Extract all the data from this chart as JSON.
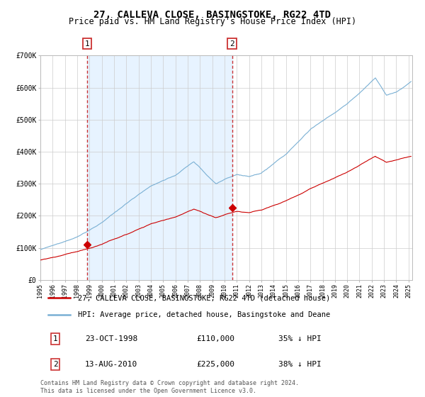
{
  "title": "27, CALLEVA CLOSE, BASINGSTOKE, RG22 4TD",
  "subtitle": "Price paid vs. HM Land Registry's House Price Index (HPI)",
  "ylim": [
    0,
    700000
  ],
  "yticks": [
    0,
    100000,
    200000,
    300000,
    400000,
    500000,
    600000,
    700000
  ],
  "ytick_labels": [
    "£0",
    "£100K",
    "£200K",
    "£300K",
    "£400K",
    "£500K",
    "£600K",
    "£700K"
  ],
  "hpi_color": "#7ab0d4",
  "price_color": "#cc0000",
  "bg_color": "#ddeeff",
  "grid_color": "#ccccdd",
  "marker_color": "#cc0000",
  "vline_color": "#cc3333",
  "purchase1_date": 1998.81,
  "purchase1_price": 110000,
  "purchase2_date": 2010.62,
  "purchase2_price": 225000,
  "legend_label1": "27, CALLEVA CLOSE, BASINGSTOKE, RG22 4TD (detached house)",
  "legend_label2": "HPI: Average price, detached house, Basingstoke and Deane",
  "table_row1": [
    "1",
    "23-OCT-1998",
    "£110,000",
    "35% ↓ HPI"
  ],
  "table_row2": [
    "2",
    "13-AUG-2010",
    "£225,000",
    "38% ↓ HPI"
  ],
  "footnote": "Contains HM Land Registry data © Crown copyright and database right 2024.\nThis data is licensed under the Open Government Licence v3.0.",
  "title_fontsize": 10,
  "subtitle_fontsize": 8.5,
  "tick_fontsize": 7,
  "legend_fontsize": 7.5,
  "table_fontsize": 8,
  "footnote_fontsize": 6
}
